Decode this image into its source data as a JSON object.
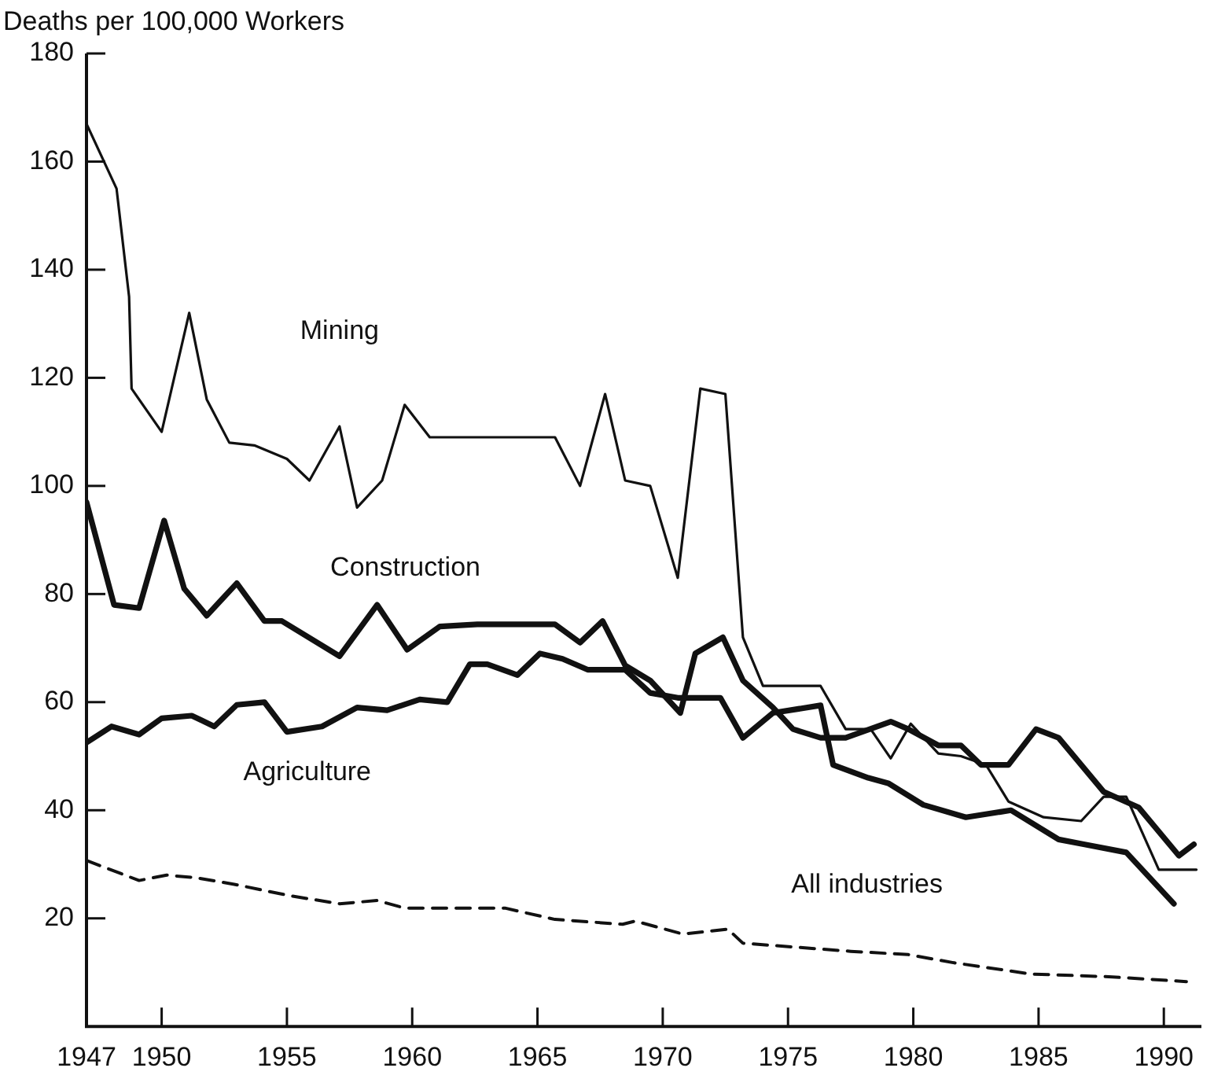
{
  "chart_data": {
    "type": "line",
    "ylabel": "Deaths per 100,000 Workers",
    "xlim": [
      1947,
      1991.5
    ],
    "xticks": [
      1947,
      1950,
      1955,
      1960,
      1965,
      1970,
      1975,
      1980,
      1985,
      1990
    ],
    "ylim": [
      0,
      180
    ],
    "yticks": [
      20,
      40,
      60,
      80,
      100,
      120,
      140,
      160,
      180
    ],
    "grid": false,
    "legend": false,
    "marker": "none",
    "series": [
      {
        "name": "Mining",
        "color": "#111111",
        "line_style": "solid",
        "x": [
          1947,
          1948.2,
          1948.7,
          1948.8,
          1950,
          1951.1,
          1951.8,
          1952.7,
          1953.7,
          1955,
          1955.9,
          1957.1,
          1957.8,
          1958.8,
          1959.7,
          1960.7,
          1965.7,
          1966.7,
          1967.7,
          1968.5,
          1969.5,
          1970.6,
          1971.5,
          1972.5,
          1973.2,
          1974,
          1976.3,
          1977.3,
          1978.3,
          1979.1,
          1979.9,
          1981,
          1981.9,
          1982.9,
          1983.8,
          1985.2,
          1986.7,
          1987.6,
          1988.5,
          1989.8,
          1991.3
        ],
        "values": [
          167,
          155,
          135,
          118,
          110,
          132,
          116,
          108,
          107.5,
          105,
          101,
          111,
          96,
          101,
          115,
          109,
          109,
          100,
          117,
          101,
          100,
          83,
          118,
          117,
          72,
          63,
          63,
          55,
          55,
          49.6,
          56,
          50.5,
          50,
          48.4,
          41.6,
          38.7,
          38,
          42.5,
          42.5,
          29,
          29
        ]
      },
      {
        "name": "Construction",
        "color": "#111111",
        "line_style": "solid",
        "x": [
          1947,
          1948.1,
          1949.1,
          1950.1,
          1950.9,
          1951.8,
          1953,
          1954.1,
          1954.8,
          1957.1,
          1958.6,
          1959.8,
          1961.1,
          1962.6,
          1965.7,
          1966.7,
          1967.6,
          1968.5,
          1969.5,
          1970.7,
          1971.3,
          1972.4,
          1973.2,
          1974.4,
          1975.2,
          1976.3,
          1977.3,
          1979.1,
          1979.8,
          1981,
          1981.9,
          1982.7,
          1983.8,
          1984.9,
          1985.8,
          1987.6,
          1989,
          1990.6,
          1991.2
        ],
        "values": [
          97,
          78,
          77.4,
          93.6,
          81,
          76,
          82,
          75,
          75,
          68.5,
          78,
          69.7,
          74,
          74.4,
          74.4,
          71,
          75,
          66.8,
          64,
          58,
          69,
          72,
          64,
          59,
          55,
          53.4,
          53.4,
          56.4,
          55,
          52,
          52,
          48.4,
          48.4,
          55,
          53.4,
          43.4,
          40.5,
          31.6,
          33.7
        ]
      },
      {
        "name": "Agriculture",
        "color": "#111111",
        "line_style": "solid",
        "x": [
          1947,
          1948,
          1949.1,
          1950,
          1951.2,
          1952.1,
          1953,
          1954.1,
          1955,
          1956.4,
          1957.8,
          1959,
          1960.3,
          1961.4,
          1962.3,
          1963,
          1964.2,
          1965.1,
          1966,
          1967,
          1968.5,
          1969.5,
          1970.6,
          1972.3,
          1973.2,
          1974.4,
          1976.3,
          1976.8,
          1978.2,
          1979,
          1980.4,
          1982.1,
          1983.9,
          1985.8,
          1986.8,
          1988.5,
          1990.4
        ],
        "values": [
          52.5,
          55.5,
          54,
          57,
          57.5,
          55.5,
          59.5,
          60,
          54.5,
          55.5,
          59,
          58.5,
          60.5,
          60,
          67,
          67,
          65,
          69,
          68,
          66,
          66,
          61.7,
          60.8,
          60.8,
          53.4,
          58,
          59.4,
          48.4,
          46,
          45,
          41,
          38.7,
          40,
          34.6,
          33.7,
          32.2,
          22.7
        ]
      },
      {
        "name": "All industries",
        "color": "#111111",
        "line_style": "dashed",
        "x": [
          1947,
          1949.1,
          1950.2,
          1951.4,
          1952.9,
          1955.1,
          1957.1,
          1958.6,
          1959.7,
          1962.2,
          1963.7,
          1965.7,
          1968.4,
          1968.9,
          1970.8,
          1972.6,
          1973.2,
          1977.5,
          1979.8,
          1981.6,
          1984.7,
          1987.8,
          1990.9
        ],
        "values": [
          30.7,
          27,
          28,
          27.5,
          26.3,
          24.2,
          22.7,
          23.3,
          21.9,
          21.9,
          21.9,
          19.8,
          18.9,
          19.5,
          17.1,
          18,
          15.4,
          13.9,
          13.3,
          11.8,
          9.7,
          9.2,
          8.3
        ]
      }
    ]
  }
}
